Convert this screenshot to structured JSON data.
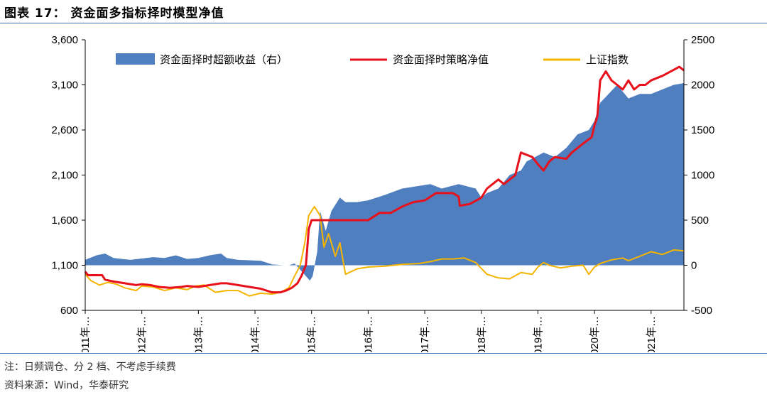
{
  "figure": {
    "title": "图表 17：  资金面多指标择时模型净值",
    "note": "注：日频调仓、分 2 档、不考虑手续费",
    "source": "资料来源：Wind，华泰研究"
  },
  "colors": {
    "excess": "#4f7fbe",
    "strategy": "#e8101a",
    "index": "#f5b400",
    "rule": "#3b6fb6"
  },
  "chart_data": {
    "type": "line",
    "x_labels": [
      "2011年…",
      "2012年…",
      "2013年…",
      "2014年…",
      "2015年…",
      "2016年…",
      "2017年…",
      "2018年…",
      "2019年…",
      "2020年…",
      "2021年…"
    ],
    "x_range": [
      2011.0,
      2021.58
    ],
    "y_left": {
      "ticks": [
        "600",
        "1,100",
        "1,600",
        "2,100",
        "2,600",
        "3,100",
        "3,600"
      ],
      "range": [
        600,
        3600
      ]
    },
    "y_right": {
      "ticks": [
        "-500",
        "0",
        "500",
        "1000",
        "1500",
        "2000",
        "2500"
      ],
      "range": [
        -500,
        2500
      ]
    },
    "legend": [
      {
        "name": "资金面择时超额收益（右）",
        "kind": "area"
      },
      {
        "name": "资金面择时策略净值",
        "kind": "line-red"
      },
      {
        "name": "上证指数",
        "kind": "line-yellow"
      }
    ],
    "series": [
      {
        "name": "资金面择时超额收益（右）",
        "axis": "right",
        "x": [
          2011.0,
          2011.2,
          2011.35,
          2011.5,
          2011.65,
          2011.8,
          2012.0,
          2012.2,
          2012.4,
          2012.6,
          2012.8,
          2013.0,
          2013.2,
          2013.4,
          2013.5,
          2013.7,
          2013.9,
          2014.1,
          2014.3,
          2014.5,
          2014.6,
          2014.7,
          2014.8,
          2014.9,
          2014.97,
          2015.02,
          2015.1,
          2015.15,
          2015.25,
          2015.35,
          2015.5,
          2015.6,
          2015.8,
          2016.0,
          2016.3,
          2016.6,
          2016.9,
          2017.1,
          2017.3,
          2017.6,
          2017.9,
          2018.0,
          2018.1,
          2018.3,
          2018.5,
          2018.7,
          2018.8,
          2018.95,
          2019.1,
          2019.3,
          2019.5,
          2019.7,
          2019.9,
          2020.0,
          2020.05,
          2020.1,
          2020.25,
          2020.4,
          2020.6,
          2020.8,
          2021.0,
          2021.2,
          2021.4,
          2021.58
        ],
        "values": [
          60,
          110,
          130,
          80,
          70,
          60,
          75,
          90,
          80,
          110,
          70,
          80,
          110,
          130,
          80,
          60,
          55,
          50,
          10,
          0,
          0,
          20,
          -50,
          -120,
          -170,
          -120,
          150,
          600,
          380,
          600,
          750,
          700,
          700,
          720,
          780,
          850,
          880,
          900,
          850,
          900,
          850,
          750,
          800,
          850,
          1000,
          1050,
          1150,
          1200,
          1250,
          1200,
          1300,
          1450,
          1500,
          1600,
          1700,
          1800,
          1900,
          2000,
          1850,
          1900,
          1900,
          1950,
          2000,
          2020
        ]
      },
      {
        "name": "资金面择时策略净值",
        "axis": "left",
        "x": [
          2011.0,
          2011.05,
          2011.3,
          2011.35,
          2011.5,
          2011.7,
          2011.9,
          2012.0,
          2012.15,
          2012.3,
          2012.5,
          2012.7,
          2012.8,
          2013.0,
          2013.2,
          2013.4,
          2013.5,
          2013.7,
          2013.9,
          2014.1,
          2014.3,
          2014.45,
          2014.55,
          2014.65,
          2014.75,
          2014.82,
          2014.9,
          2014.92,
          2014.95,
          2015.0,
          2015.5,
          2016.0,
          2016.2,
          2016.4,
          2016.6,
          2016.8,
          2017.0,
          2017.2,
          2017.5,
          2017.6,
          2017.62,
          2017.8,
          2018.0,
          2018.1,
          2018.3,
          2018.4,
          2018.6,
          2018.7,
          2018.9,
          2019.0,
          2019.1,
          2019.2,
          2019.3,
          2019.5,
          2019.6,
          2019.8,
          2019.95,
          2020.0,
          2020.05,
          2020.1,
          2020.2,
          2020.3,
          2020.4,
          2020.5,
          2020.6,
          2020.7,
          2020.8,
          2020.9,
          2021.0,
          2021.2,
          2021.35,
          2021.5,
          2021.58
        ],
        "values": [
          1030,
          990,
          990,
          940,
          920,
          900,
          880,
          890,
          880,
          860,
          850,
          860,
          870,
          860,
          880,
          900,
          900,
          880,
          860,
          840,
          800,
          800,
          820,
          850,
          900,
          980,
          1100,
          1250,
          1500,
          1600,
          1600,
          1600,
          1680,
          1680,
          1750,
          1800,
          1820,
          1900,
          1900,
          1860,
          1760,
          1780,
          1850,
          1950,
          2050,
          2000,
          2100,
          2350,
          2300,
          2220,
          2150,
          2250,
          2300,
          2280,
          2350,
          2450,
          2520,
          2650,
          2750,
          3150,
          3250,
          3150,
          3100,
          3050,
          3150,
          3050,
          3100,
          3100,
          3150,
          3200,
          3250,
          3300,
          3260
        ]
      },
      {
        "name": "上证指数",
        "axis": "left",
        "x": [
          2011.0,
          2011.1,
          2011.25,
          2011.4,
          2011.55,
          2011.7,
          2011.9,
          2012.0,
          2012.2,
          2012.4,
          2012.6,
          2012.8,
          2012.95,
          2013.1,
          2013.3,
          2013.5,
          2013.7,
          2013.9,
          2014.1,
          2014.3,
          2014.45,
          2014.6,
          2014.7,
          2014.8,
          2014.88,
          2014.95,
          2015.05,
          2015.15,
          2015.22,
          2015.3,
          2015.42,
          2015.5,
          2015.6,
          2015.8,
          2016.0,
          2016.3,
          2016.6,
          2016.9,
          2017.1,
          2017.3,
          2017.5,
          2017.7,
          2017.9,
          2018.1,
          2018.3,
          2018.5,
          2018.7,
          2018.9,
          2019.0,
          2019.1,
          2019.2,
          2019.4,
          2019.6,
          2019.8,
          2019.9,
          2020.0,
          2020.1,
          2020.3,
          2020.5,
          2020.6,
          2020.8,
          2021.0,
          2021.2,
          2021.4,
          2021.58
        ],
        "values": [
          1000,
          930,
          880,
          910,
          890,
          850,
          820,
          870,
          860,
          820,
          850,
          830,
          870,
          880,
          800,
          820,
          820,
          760,
          790,
          780,
          800,
          850,
          980,
          1100,
          1350,
          1650,
          1750,
          1650,
          1300,
          1450,
          1200,
          1350,
          1000,
          1060,
          1080,
          1090,
          1110,
          1120,
          1140,
          1170,
          1170,
          1180,
          1130,
          1000,
          960,
          950,
          1020,
          1000,
          1080,
          1130,
          1100,
          1070,
          1090,
          1100,
          1000,
          1080,
          1120,
          1160,
          1180,
          1150,
          1200,
          1250,
          1220,
          1270,
          1260
        ]
      }
    ]
  }
}
